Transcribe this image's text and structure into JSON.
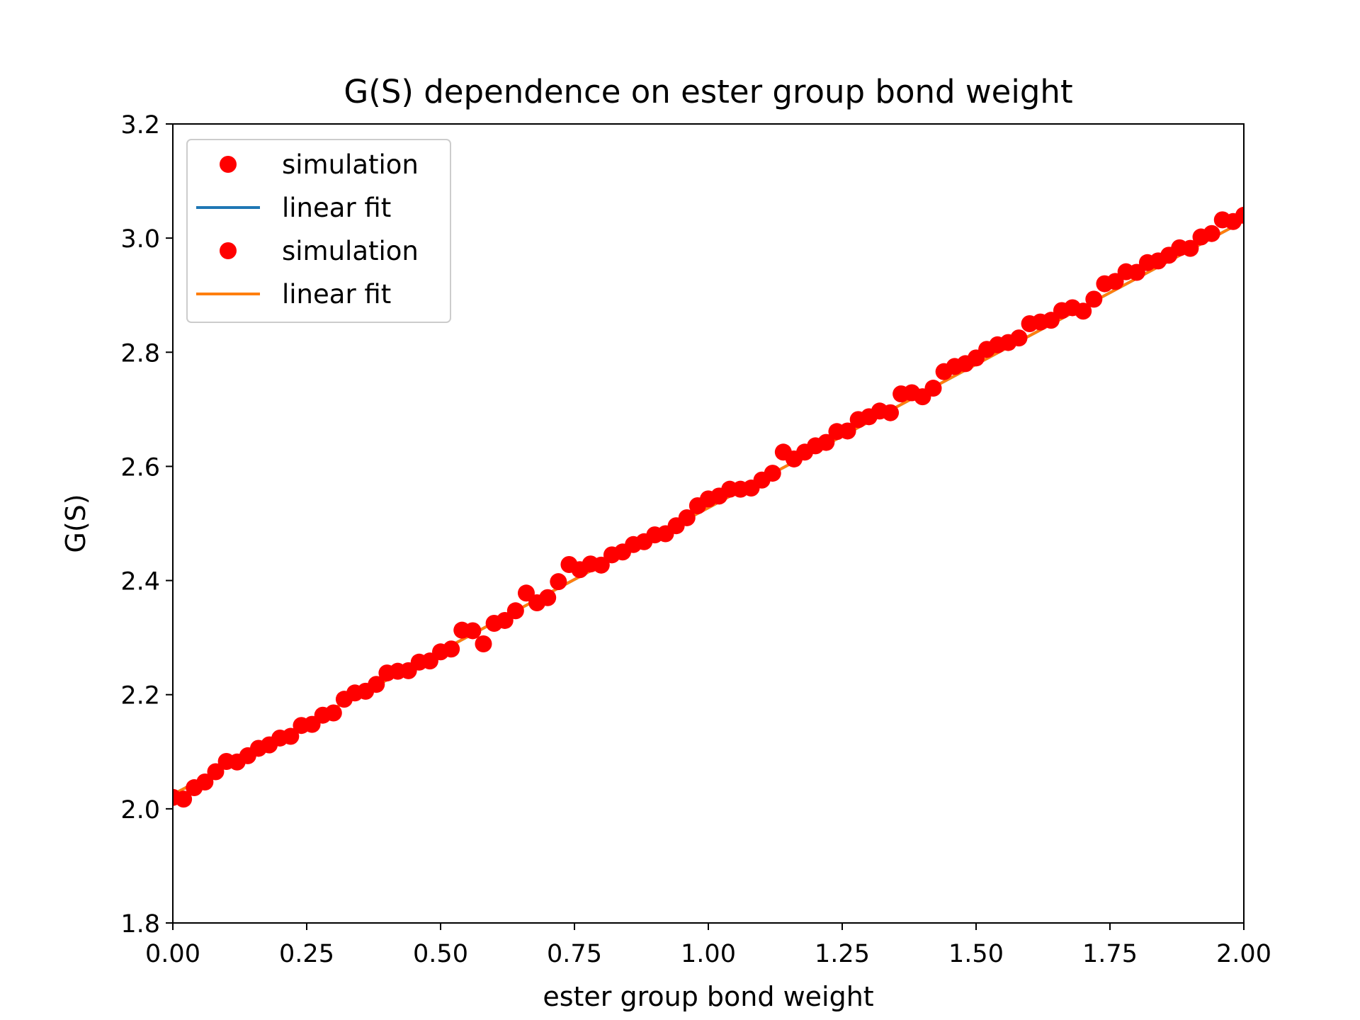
{
  "chart_data": {
    "type": "scatter",
    "title": "G(S) dependence on ester group bond weight",
    "xlabel": "ester group bond weight",
    "ylabel": "G(S)",
    "xlim": [
      0.0,
      2.0
    ],
    "ylim": [
      1.8,
      3.2
    ],
    "x_ticks": [
      "0.00",
      "0.25",
      "0.50",
      "0.75",
      "1.00",
      "1.25",
      "1.50",
      "1.75",
      "2.00"
    ],
    "y_ticks": [
      "1.8",
      "2.0",
      "2.2",
      "2.4",
      "2.6",
      "2.8",
      "3.0",
      "3.2"
    ],
    "grid": false,
    "legend_position": "upper-left",
    "legend": [
      {
        "label": "simulation",
        "kind": "marker",
        "color": "#ff0000"
      },
      {
        "label": "linear fit",
        "kind": "line",
        "color": "#1f77b4"
      },
      {
        "label": "simulation",
        "kind": "marker",
        "color": "#ff0000"
      },
      {
        "label": "linear fit",
        "kind": "line",
        "color": "#ff7f0e"
      }
    ],
    "series": [
      {
        "type": "scatter",
        "color": "#ff0000",
        "x": [
          0.0,
          0.02,
          0.04,
          0.06,
          0.08,
          0.1,
          0.12,
          0.14,
          0.16,
          0.18,
          0.2,
          0.22,
          0.24,
          0.26,
          0.28,
          0.3,
          0.32,
          0.34,
          0.36,
          0.38,
          0.4,
          0.42,
          0.44,
          0.46,
          0.48,
          0.5,
          0.52,
          0.54,
          0.56,
          0.58,
          0.6,
          0.62,
          0.64,
          0.66,
          0.68,
          0.7,
          0.72,
          0.74,
          0.76,
          0.78,
          0.8,
          0.82,
          0.84,
          0.86,
          0.88,
          0.9,
          0.92,
          0.94,
          0.96,
          0.98,
          1.0,
          1.02,
          1.04,
          1.06,
          1.08,
          1.1,
          1.12,
          1.14,
          1.16,
          1.18,
          1.2,
          1.22,
          1.24,
          1.26,
          1.28,
          1.3,
          1.32,
          1.34,
          1.36,
          1.38,
          1.4,
          1.42,
          1.44,
          1.46,
          1.48,
          1.5,
          1.52,
          1.54,
          1.56,
          1.58,
          1.6,
          1.62,
          1.64,
          1.66,
          1.68,
          1.7,
          1.72,
          1.74,
          1.76,
          1.78,
          1.8,
          1.82,
          1.84,
          1.86,
          1.88,
          1.9,
          1.92,
          1.94,
          1.96,
          1.98,
          2.0
        ],
        "y": [
          2.02,
          2.017,
          2.037,
          2.047,
          2.065,
          2.083,
          2.082,
          2.093,
          2.106,
          2.112,
          2.124,
          2.127,
          2.146,
          2.148,
          2.164,
          2.168,
          2.192,
          2.203,
          2.206,
          2.218,
          2.238,
          2.241,
          2.242,
          2.257,
          2.259,
          2.275,
          2.28,
          2.313,
          2.312,
          2.289,
          2.325,
          2.33,
          2.347,
          2.378,
          2.361,
          2.37,
          2.398,
          2.428,
          2.419,
          2.429,
          2.427,
          2.445,
          2.45,
          2.463,
          2.468,
          2.48,
          2.482,
          2.496,
          2.51,
          2.531,
          2.543,
          2.548,
          2.56,
          2.56,
          2.562,
          2.576,
          2.588,
          2.625,
          2.613,
          2.625,
          2.636,
          2.642,
          2.661,
          2.662,
          2.682,
          2.687,
          2.697,
          2.694,
          2.727,
          2.729,
          2.722,
          2.737,
          2.766,
          2.775,
          2.78,
          2.79,
          2.805,
          2.813,
          2.817,
          2.825,
          2.85,
          2.853,
          2.856,
          2.873,
          2.878,
          2.872,
          2.893,
          2.92,
          2.924,
          2.941,
          2.94,
          2.957,
          2.96,
          2.97,
          2.983,
          2.982,
          3.002,
          3.008,
          3.032,
          3.029,
          3.04
        ]
      },
      {
        "type": "line",
        "color": "#1f77b4",
        "x": [
          0.0,
          2.0
        ],
        "y": [
          2.025,
          3.03
        ]
      },
      {
        "type": "line",
        "color": "#ff7f0e",
        "x": [
          0.0,
          2.0
        ],
        "y": [
          2.025,
          3.03
        ]
      }
    ]
  }
}
